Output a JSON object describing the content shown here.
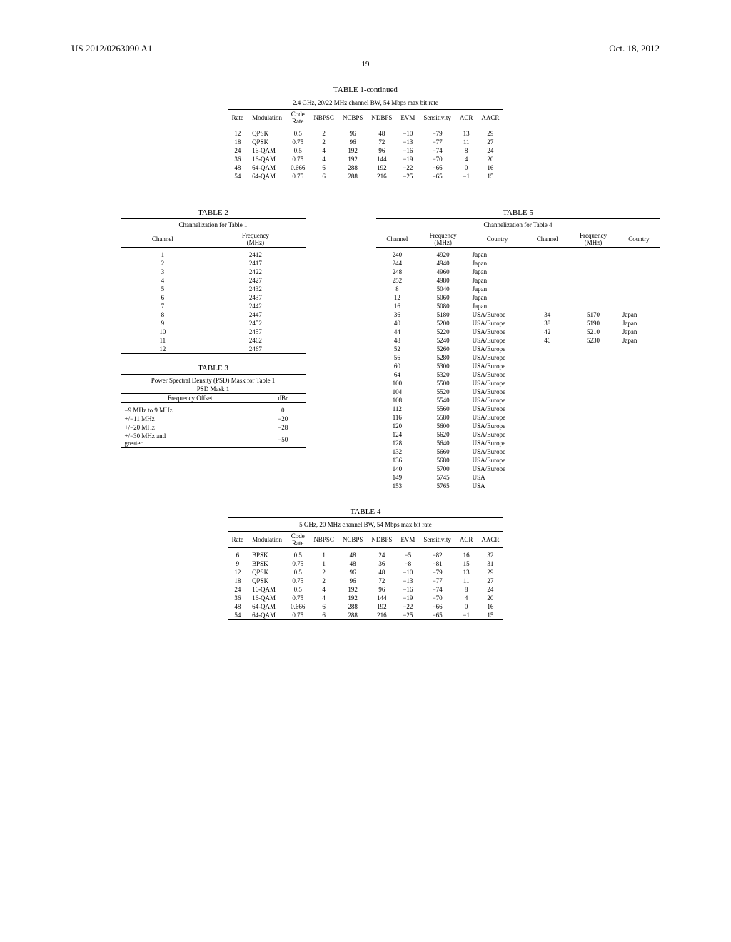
{
  "header": {
    "pubno": "US 2012/0263090 A1",
    "date": "Oct. 18, 2012",
    "page": "19"
  },
  "table1": {
    "title": "TABLE 1-continued",
    "subtitle": "2.4 GHz, 20/22 MHz channel BW, 54 Mbps max bit rate",
    "cols": [
      "Rate",
      "Modulation",
      "Code\nRate",
      "NBPSC",
      "NCBPS",
      "NDBPS",
      "EVM",
      "Sensitivity",
      "ACR",
      "AACR"
    ],
    "rows": [
      [
        "12",
        "QPSK",
        "0.5",
        "2",
        "96",
        "48",
        "−10",
        "−79",
        "13",
        "29"
      ],
      [
        "18",
        "QPSK",
        "0.75",
        "2",
        "96",
        "72",
        "−13",
        "−77",
        "11",
        "27"
      ],
      [
        "24",
        "16-QAM",
        "0.5",
        "4",
        "192",
        "96",
        "−16",
        "−74",
        "8",
        "24"
      ],
      [
        "36",
        "16-QAM",
        "0.75",
        "4",
        "192",
        "144",
        "−19",
        "−70",
        "4",
        "20"
      ],
      [
        "48",
        "64-QAM",
        "0.666",
        "6",
        "288",
        "192",
        "−22",
        "−66",
        "0",
        "16"
      ],
      [
        "54",
        "64-QAM",
        "0.75",
        "6",
        "288",
        "216",
        "−25",
        "−65",
        "−1",
        "15"
      ]
    ]
  },
  "table2": {
    "title": "TABLE 2",
    "subtitle": "Channelization for Table 1",
    "cols": [
      "Channel",
      "Frequency\n(MHz)"
    ],
    "rows": [
      [
        "1",
        "2412"
      ],
      [
        "2",
        "2417"
      ],
      [
        "3",
        "2422"
      ],
      [
        "4",
        "2427"
      ],
      [
        "5",
        "2432"
      ],
      [
        "6",
        "2437"
      ],
      [
        "7",
        "2442"
      ],
      [
        "8",
        "2447"
      ],
      [
        "9",
        "2452"
      ],
      [
        "10",
        "2457"
      ],
      [
        "11",
        "2462"
      ],
      [
        "12",
        "2467"
      ]
    ]
  },
  "table3": {
    "title": "TABLE 3",
    "subtitle": "Power Spectral Density (PSD) Mask for Table 1",
    "sub2": "PSD Mask 1",
    "cols": [
      "Frequency Offset",
      "dBr"
    ],
    "rows": [
      [
        "−9 MHz to 9 MHz",
        "0"
      ],
      [
        "+/−11 MHz",
        "−20"
      ],
      [
        "+/−20 MHz",
        "−28"
      ],
      [
        "+/−30 MHz and\ngreater",
        "−50"
      ]
    ]
  },
  "table4": {
    "title": "TABLE 4",
    "subtitle": "5 GHz, 20 MHz channel BW, 54 Mbps max bit rate",
    "cols": [
      "Rate",
      "Modulation",
      "Code\nRate",
      "NBPSC",
      "NCBPS",
      "NDBPS",
      "EVM",
      "Sensitivity",
      "ACR",
      "AACR"
    ],
    "rows": [
      [
        "6",
        "BPSK",
        "0.5",
        "1",
        "48",
        "24",
        "−5",
        "−82",
        "16",
        "32"
      ],
      [
        "9",
        "BPSK",
        "0.75",
        "1",
        "48",
        "36",
        "−8",
        "−81",
        "15",
        "31"
      ],
      [
        "12",
        "QPSK",
        "0.5",
        "2",
        "96",
        "48",
        "−10",
        "−79",
        "13",
        "29"
      ],
      [
        "18",
        "QPSK",
        "0.75",
        "2",
        "96",
        "72",
        "−13",
        "−77",
        "11",
        "27"
      ],
      [
        "24",
        "16-QAM",
        "0.5",
        "4",
        "192",
        "96",
        "−16",
        "−74",
        "8",
        "24"
      ],
      [
        "36",
        "16-QAM",
        "0.75",
        "4",
        "192",
        "144",
        "−19",
        "−70",
        "4",
        "20"
      ],
      [
        "48",
        "64-QAM",
        "0.666",
        "6",
        "288",
        "192",
        "−22",
        "−66",
        "0",
        "16"
      ],
      [
        "54",
        "64-QAM",
        "0.75",
        "6",
        "288",
        "216",
        "−25",
        "−65",
        "−1",
        "15"
      ]
    ]
  },
  "table5": {
    "title": "TABLE 5",
    "subtitle": "Channelization for Table 4",
    "cols": [
      "Channel",
      "Frequency\n(MHz)",
      "Country",
      "Channel",
      "Frequency\n(MHz)",
      "Country"
    ],
    "rows": [
      [
        "240",
        "4920",
        "Japan",
        "",
        "",
        ""
      ],
      [
        "244",
        "4940",
        "Japan",
        "",
        "",
        ""
      ],
      [
        "248",
        "4960",
        "Japan",
        "",
        "",
        ""
      ],
      [
        "252",
        "4980",
        "Japan",
        "",
        "",
        ""
      ],
      [
        "8",
        "5040",
        "Japan",
        "",
        "",
        ""
      ],
      [
        "12",
        "5060",
        "Japan",
        "",
        "",
        ""
      ],
      [
        "16",
        "5080",
        "Japan",
        "",
        "",
        ""
      ],
      [
        "36",
        "5180",
        "USA/Europe",
        "34",
        "5170",
        "Japan"
      ],
      [
        "40",
        "5200",
        "USA/Europe",
        "38",
        "5190",
        "Japan"
      ],
      [
        "44",
        "5220",
        "USA/Europe",
        "42",
        "5210",
        "Japan"
      ],
      [
        "48",
        "5240",
        "USA/Europe",
        "46",
        "5230",
        "Japan"
      ],
      [
        "52",
        "5260",
        "USA/Europe",
        "",
        "",
        ""
      ],
      [
        "56",
        "5280",
        "USA/Europe",
        "",
        "",
        ""
      ],
      [
        "60",
        "5300",
        "USA/Europe",
        "",
        "",
        ""
      ],
      [
        "64",
        "5320",
        "USA/Europe",
        "",
        "",
        ""
      ],
      [
        "100",
        "5500",
        "USA/Europe",
        "",
        "",
        ""
      ],
      [
        "104",
        "5520",
        "USA/Europe",
        "",
        "",
        ""
      ],
      [
        "108",
        "5540",
        "USA/Europe",
        "",
        "",
        ""
      ],
      [
        "112",
        "5560",
        "USA/Europe",
        "",
        "",
        ""
      ],
      [
        "116",
        "5580",
        "USA/Europe",
        "",
        "",
        ""
      ],
      [
        "120",
        "5600",
        "USA/Europe",
        "",
        "",
        ""
      ],
      [
        "124",
        "5620",
        "USA/Europe",
        "",
        "",
        ""
      ],
      [
        "128",
        "5640",
        "USA/Europe",
        "",
        "",
        ""
      ],
      [
        "132",
        "5660",
        "USA/Europe",
        "",
        "",
        ""
      ],
      [
        "136",
        "5680",
        "USA/Europe",
        "",
        "",
        ""
      ],
      [
        "140",
        "5700",
        "USA/Europe",
        "",
        "",
        ""
      ],
      [
        "149",
        "5745",
        "USA",
        "",
        "",
        ""
      ],
      [
        "153",
        "5765",
        "USA",
        "",
        "",
        ""
      ]
    ]
  }
}
